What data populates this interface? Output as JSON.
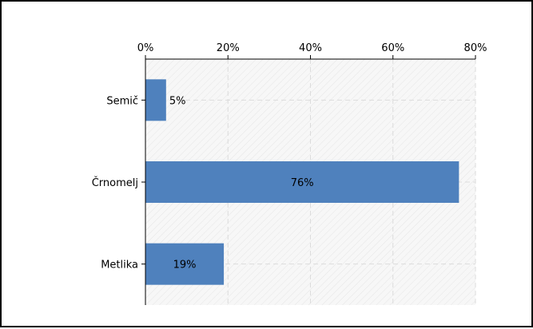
{
  "chart_data": {
    "type": "bar",
    "orientation": "horizontal",
    "categories": [
      "Semič",
      "Črnomelj",
      "Metlika"
    ],
    "values": [
      5,
      76,
      19
    ],
    "value_labels": [
      "5%",
      "76%",
      "19%"
    ],
    "x_ticks": [
      "0%",
      "20%",
      "40%",
      "60%",
      "80%"
    ],
    "xlim": [
      0,
      80
    ],
    "x_axis_position": "top",
    "grid": true,
    "bar_color": "#4f81bd",
    "title": "",
    "xlabel": "",
    "ylabel": ""
  }
}
